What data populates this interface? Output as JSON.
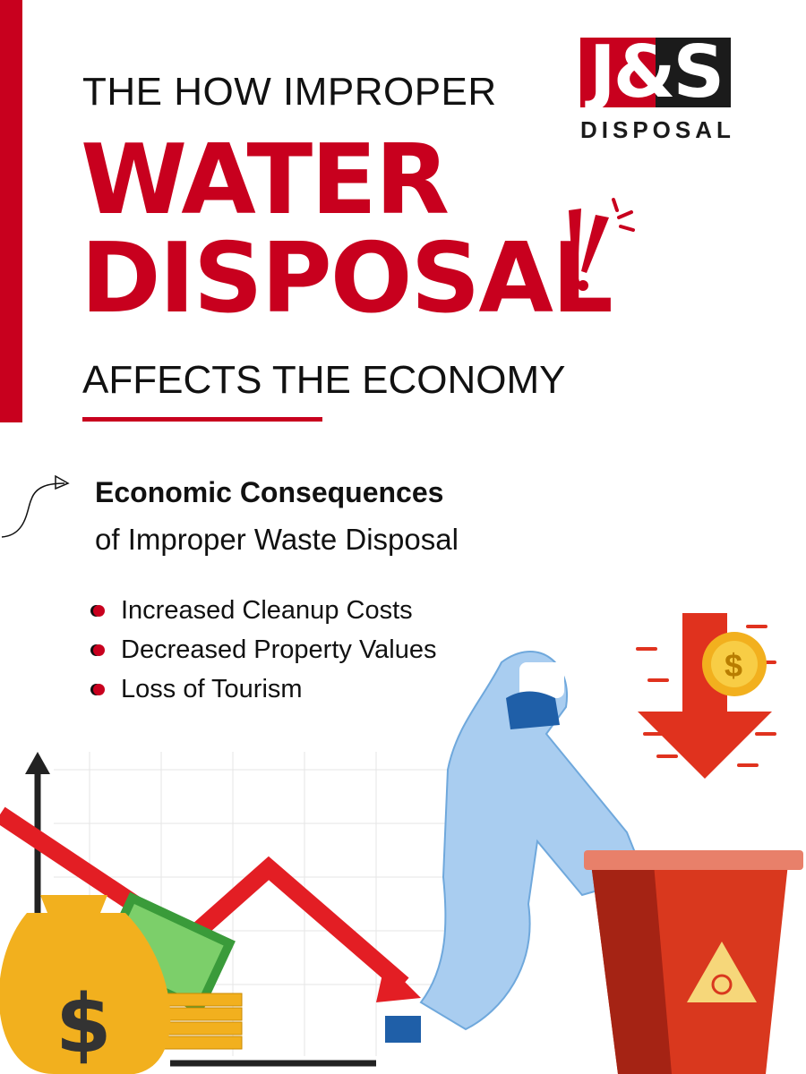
{
  "header": {
    "line1": "THE HOW IMPROPER",
    "line2": "WATER",
    "line3": "DISPOSAL",
    "line4": "AFFECTS THE ECONOMY"
  },
  "logo": {
    "mark": "J&S",
    "subtitle": "DISPOSAL"
  },
  "section": {
    "title_bold": "Economic Consequences",
    "title_regular": "of Improper Waste Disposal",
    "items": [
      {
        "label": "Increased Cleanup Costs"
      },
      {
        "label": "Decreased Property Values"
      },
      {
        "label": "Loss of Tourism"
      }
    ]
  },
  "colors": {
    "accent": "#c8001e",
    "dark": "#1b1b1b",
    "suit": "#a9cdf0",
    "bin": "#d9381e",
    "gold": "#f2b01e"
  },
  "icons": [
    "exclamation-icon",
    "curved-arrow-icon",
    "money-bag-icon",
    "dollar-coin-icon",
    "down-arrow-icon",
    "biohazard-icon"
  ]
}
